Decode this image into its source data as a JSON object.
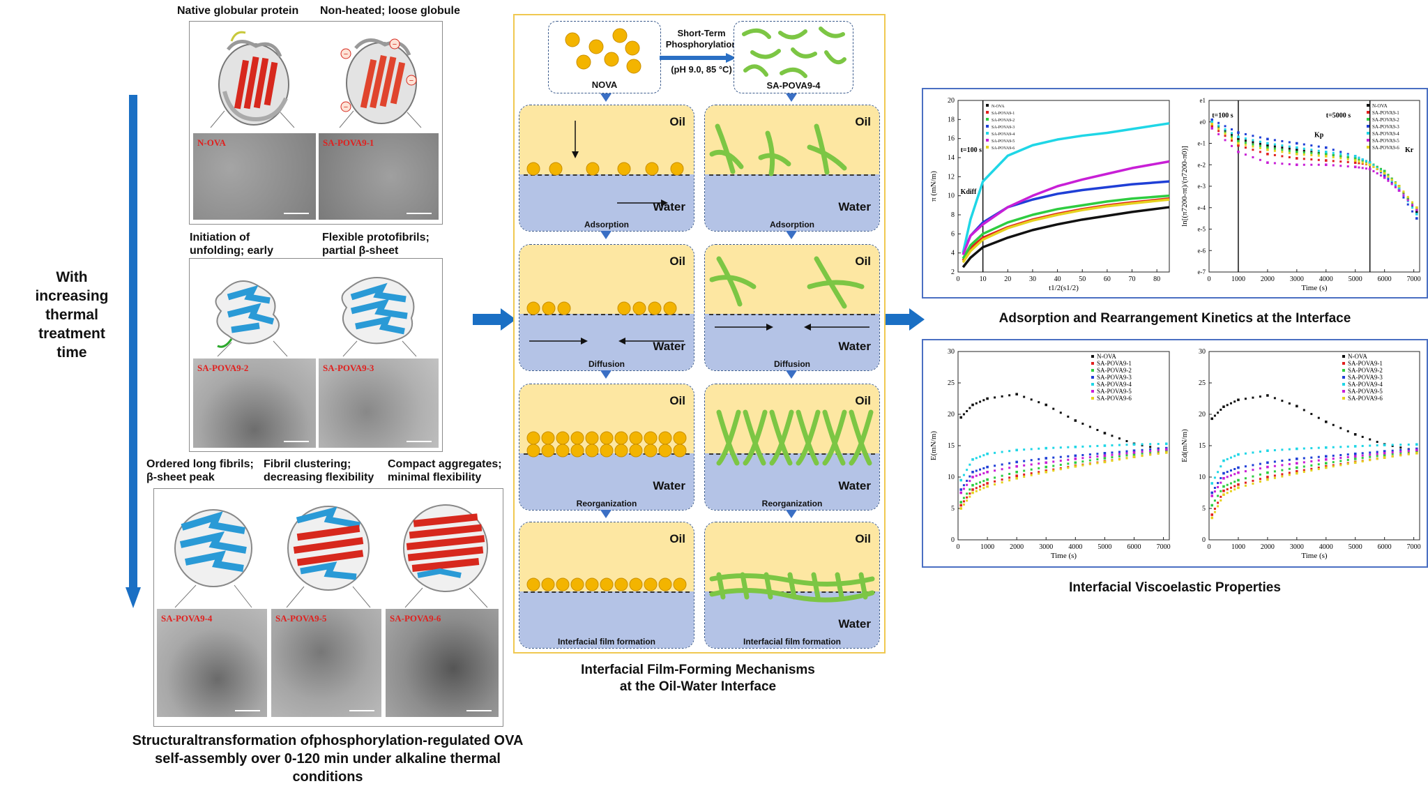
{
  "left": {
    "side_label": "With increasing thermal treatment time",
    "row1": {
      "label_a": "Native globular protein",
      "label_b": "Non-heated; loose globule",
      "tem_a": "N-OVA",
      "tem_b": "SA-POVA9-1"
    },
    "row2": {
      "label_a": "Initiation of unfolding; early aggregation",
      "label_b": "Flexible protofibrils; partial β-sheet",
      "tem_a": "SA-POVA9-2",
      "tem_b": "SA-POVA9-3"
    },
    "row3": {
      "label_a": "Ordered long fibrils; β-sheet peak",
      "label_b": "Fibril clustering; decreasing flexibility",
      "label_c": "Compact aggregates; minimal flexibility",
      "tem_a": "SA-POVA9-4",
      "tem_b": "SA-POVA9-5",
      "tem_c": "SA-POVA9-6"
    },
    "caption": "Structuraltransformation ofphosphorylation-regulated OVA self-assembly over 0-120 min under alkaline thermal conditions"
  },
  "middle": {
    "nova": "NOVA",
    "sapova": "SA-POVA9-4",
    "arrow_top": "Short-Term Phosphorylation",
    "arrow_bottom": "(pH 9.0, 85 °C)",
    "oil": "Oil",
    "water": "Water",
    "steps": [
      "Adsorption",
      "Diffusion",
      "Reorganization",
      "Interfacial film formation"
    ],
    "caption_line1": "Interfacial Film-Forming Mechanisms",
    "caption_line2": "at the Oil-Water Interface"
  },
  "right": {
    "caption_top": "Adsorption and Rearrangement Kinetics at the Interface",
    "caption_bottom": "Interfacial Viscoelastic Properties",
    "legend": [
      "N-OVA",
      "SA-POVA9-1",
      "SA-POVA9-2",
      "SA-POVA9-3",
      "SA-POVA9-4",
      "SA-POVA9-5",
      "SA-POVA9-6"
    ],
    "series_colors": [
      "#111111",
      "#e0201e",
      "#2ecc40",
      "#1f3fd6",
      "#1fd6e6",
      "#c81fd6",
      "#e6d21f"
    ],
    "chart1": {
      "ylabel": "π (mN/m)",
      "xlabel": "t1/2(s1/2)",
      "annot1": "t=100 s",
      "annot2": "Kdiff"
    },
    "chart2": {
      "ylabel": "ln[(π7200-πt)/(π7200-π0)]",
      "xlabel": "Time (s)",
      "annot1": "t=100 s",
      "annot2": "t=5000 s",
      "annot3": "Kp",
      "annot4": "Kr"
    },
    "chart3": {
      "ylabel": "E(mN/m)",
      "xlabel": "Time (s)"
    },
    "chart4": {
      "ylabel": "Ed(mN/m)",
      "xlabel": "Time (s)"
    }
  },
  "chart_data": [
    {
      "type": "line",
      "title": "",
      "xlabel": "t1/2(s1/2)",
      "ylabel": "π (mN/m)",
      "xlim": [
        0,
        85
      ],
      "ylim": [
        2,
        20
      ],
      "xticks": [
        "0",
        "10",
        "20",
        "30",
        "40",
        "50",
        "60",
        "70",
        "80"
      ],
      "yticks": [
        "2",
        "4",
        "6",
        "8",
        "10",
        "12",
        "14",
        "16",
        "18",
        "20"
      ],
      "x": [
        2,
        5,
        10,
        20,
        30,
        40,
        50,
        60,
        70,
        85
      ],
      "series": [
        {
          "name": "N-OVA",
          "values": [
            2.5,
            3.5,
            4.6,
            5.6,
            6.4,
            7.0,
            7.5,
            7.9,
            8.3,
            8.8
          ]
        },
        {
          "name": "SA-POVA9-1",
          "values": [
            3.2,
            4.5,
            5.6,
            6.7,
            7.5,
            8.1,
            8.6,
            9.0,
            9.3,
            9.7
          ]
        },
        {
          "name": "SA-POVA9-2",
          "values": [
            3.4,
            4.8,
            6.0,
            7.2,
            8.0,
            8.6,
            9.0,
            9.4,
            9.7,
            10.0
          ]
        },
        {
          "name": "SA-POVA9-3",
          "values": [
            4.0,
            5.8,
            7.2,
            8.8,
            9.6,
            10.2,
            10.6,
            10.9,
            11.2,
            11.5
          ]
        },
        {
          "name": "SA-POVA9-4",
          "values": [
            4.0,
            7.5,
            11.5,
            14.2,
            15.3,
            15.9,
            16.3,
            16.6,
            17.0,
            17.6
          ]
        },
        {
          "name": "SA-POVA9-5",
          "values": [
            3.8,
            5.8,
            7.0,
            8.8,
            10.0,
            11.0,
            11.7,
            12.3,
            12.9,
            13.6
          ]
        },
        {
          "name": "SA-POVA9-6",
          "values": [
            3.0,
            4.2,
            5.4,
            6.6,
            7.4,
            8.0,
            8.5,
            8.9,
            9.2,
            9.6
          ]
        }
      ]
    },
    {
      "type": "scatter",
      "title": "",
      "xlabel": "Time (s)",
      "ylabel": "ln[(π7200-πt)/(π7200-π0)]",
      "xlim": [
        0,
        7200
      ],
      "ylim": [
        -7,
        1
      ],
      "xticks": [
        "0",
        "1000",
        "2000",
        "3000",
        "4000",
        "5000",
        "6000",
        "7000"
      ],
      "x": [
        100,
        1000,
        2000,
        3000,
        4000,
        5000,
        5500,
        6000,
        6500,
        7100
      ],
      "series": [
        {
          "name": "N-OVA",
          "values": [
            0.0,
            -0.8,
            -1.1,
            -1.3,
            -1.5,
            -1.7,
            -1.9,
            -2.3,
            -3.0,
            -4.2
          ]
        },
        {
          "name": "SA-POVA9-1",
          "values": [
            -0.2,
            -1.1,
            -1.5,
            -1.7,
            -1.8,
            -1.9,
            -2.0,
            -2.4,
            -3.1,
            -4.0
          ]
        },
        {
          "name": "SA-POVA9-2",
          "values": [
            -0.1,
            -0.9,
            -1.2,
            -1.4,
            -1.5,
            -1.7,
            -1.9,
            -2.3,
            -3.0,
            -4.1
          ]
        },
        {
          "name": "SA-POVA9-3",
          "values": [
            0.1,
            -0.5,
            -0.8,
            -1.0,
            -1.2,
            -1.6,
            -1.9,
            -2.5,
            -3.2,
            -4.5
          ]
        },
        {
          "name": "SA-POVA9-4",
          "values": [
            0.0,
            -0.7,
            -1.0,
            -1.2,
            -1.4,
            -1.6,
            -1.9,
            -2.4,
            -3.1,
            -4.3
          ]
        },
        {
          "name": "SA-POVA9-5",
          "values": [
            -0.3,
            -1.4,
            -1.9,
            -2.0,
            -2.0,
            -2.1,
            -2.2,
            -2.6,
            -3.2,
            -4.1
          ]
        },
        {
          "name": "SA-POVA9-6",
          "values": [
            -0.1,
            -1.0,
            -1.3,
            -1.5,
            -1.6,
            -1.8,
            -2.0,
            -2.4,
            -3.0,
            -4.0
          ]
        }
      ]
    },
    {
      "type": "scatter",
      "title": "",
      "xlabel": "Time (s)",
      "ylabel": "E(mN/m)",
      "xlim": [
        0,
        7200
      ],
      "ylim": [
        0,
        30
      ],
      "xticks": [
        "0",
        "1000",
        "2000",
        "3000",
        "4000",
        "5000",
        "6000",
        "7000"
      ],
      "yticks": [
        "0",
        "5",
        "10",
        "15",
        "20",
        "25",
        "30"
      ],
      "x": [
        100,
        500,
        1000,
        2000,
        3000,
        4000,
        5000,
        6000,
        7100
      ],
      "series": [
        {
          "name": "N-OVA",
          "values": [
            19.5,
            21.5,
            22.5,
            23.2,
            21.5,
            19.0,
            17.0,
            15.3,
            14.3
          ]
        },
        {
          "name": "SA-POVA9-1",
          "values": [
            5.5,
            8.0,
            9.0,
            10.2,
            11.0,
            11.8,
            12.5,
            13.2,
            14.0
          ]
        },
        {
          "name": "SA-POVA9-2",
          "values": [
            6.0,
            8.7,
            9.6,
            10.8,
            11.6,
            12.3,
            13.0,
            13.6,
            14.3
          ]
        },
        {
          "name": "SA-POVA9-3",
          "values": [
            8.0,
            10.8,
            11.6,
            12.4,
            13.0,
            13.4,
            13.8,
            14.2,
            14.6
          ]
        },
        {
          "name": "SA-POVA9-4",
          "values": [
            9.5,
            12.8,
            13.7,
            14.3,
            14.6,
            14.8,
            15.0,
            15.2,
            15.3
          ]
        },
        {
          "name": "SA-POVA9-5",
          "values": [
            7.5,
            10.0,
            10.8,
            11.7,
            12.3,
            12.9,
            13.4,
            13.9,
            14.4
          ]
        },
        {
          "name": "SA-POVA9-6",
          "values": [
            5.0,
            7.5,
            8.5,
            9.8,
            10.8,
            11.7,
            12.4,
            13.2,
            13.9
          ]
        }
      ]
    },
    {
      "type": "scatter",
      "title": "",
      "xlabel": "Time (s)",
      "ylabel": "Ed(mN/m)",
      "xlim": [
        0,
        7200
      ],
      "ylim": [
        0,
        30
      ],
      "xticks": [
        "0",
        "1000",
        "2000",
        "3000",
        "4000",
        "5000",
        "6000",
        "7000"
      ],
      "yticks": [
        "0",
        "5",
        "10",
        "15",
        "20",
        "25",
        "30"
      ],
      "x": [
        100,
        500,
        1000,
        2000,
        3000,
        4000,
        5000,
        6000,
        7100
      ],
      "series": [
        {
          "name": "N-OVA",
          "values": [
            19.3,
            21.2,
            22.3,
            23.0,
            21.3,
            18.8,
            16.8,
            15.2,
            14.2
          ]
        },
        {
          "name": "SA-POVA9-1",
          "values": [
            4.0,
            7.8,
            8.8,
            10.0,
            10.9,
            11.7,
            12.4,
            13.1,
            13.9
          ]
        },
        {
          "name": "SA-POVA9-2",
          "values": [
            5.5,
            8.5,
            9.5,
            10.7,
            11.5,
            12.2,
            12.9,
            13.5,
            14.2
          ]
        },
        {
          "name": "SA-POVA9-3",
          "values": [
            7.5,
            10.6,
            11.5,
            12.3,
            12.9,
            13.3,
            13.7,
            14.1,
            14.5
          ]
        },
        {
          "name": "SA-POVA9-4",
          "values": [
            9.0,
            12.6,
            13.6,
            14.2,
            14.5,
            14.7,
            14.9,
            15.1,
            15.2
          ]
        },
        {
          "name": "SA-POVA9-5",
          "values": [
            7.0,
            9.8,
            10.7,
            11.6,
            12.2,
            12.8,
            13.3,
            13.8,
            14.3
          ]
        },
        {
          "name": "SA-POVA9-6",
          "values": [
            3.5,
            7.2,
            8.3,
            9.6,
            10.6,
            11.5,
            12.3,
            13.1,
            13.8
          ]
        }
      ]
    }
  ]
}
